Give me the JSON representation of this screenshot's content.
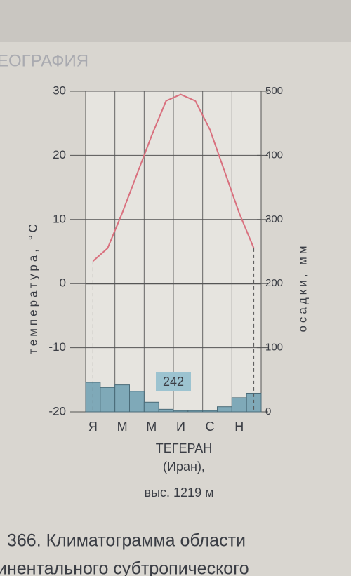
{
  "header": "ЕОГРАФИЯ",
  "chart_data": {
    "type": "climatogram",
    "y_label": "температура, °С",
    "y2_label": "осадки, мм",
    "categories": [
      "Я",
      null,
      "М",
      null,
      "М",
      null,
      "И",
      null,
      "С",
      null,
      "Н",
      null
    ],
    "series": [
      {
        "name": "температура",
        "type": "line",
        "color": "#d9707e",
        "values": [
          3.5,
          5.5,
          11,
          17,
          23,
          28.5,
          29.5,
          28.5,
          24,
          17.5,
          11,
          5.5
        ]
      },
      {
        "name": "осадки",
        "type": "bar",
        "axis": "y2",
        "color": "#7fa9b8",
        "values": [
          46,
          38,
          42,
          32,
          15,
          4,
          2,
          2,
          2,
          8,
          22,
          29
        ]
      }
    ],
    "annotation": "242",
    "ylim": [
      -20,
      30
    ],
    "yticks": [
      -20,
      -10,
      0,
      10,
      20,
      30
    ],
    "y2lim": [
      0,
      500
    ],
    "y2ticks": [
      0,
      100,
      200,
      300,
      400,
      500
    ],
    "grid": true,
    "caption": [
      "ТЕГЕРАН",
      "(Иран),",
      "выс. 1219 м"
    ]
  },
  "footer": [
    "366. Климатограмма области",
    "инентального субтропического"
  ]
}
